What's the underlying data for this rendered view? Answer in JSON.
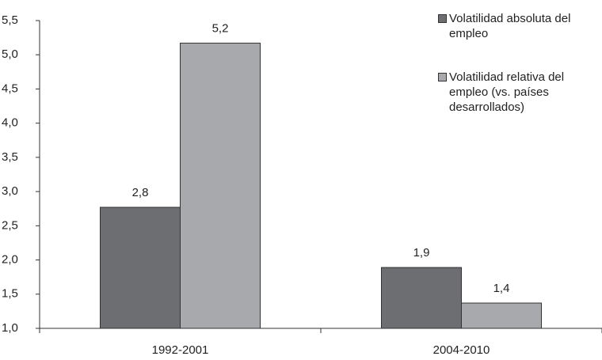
{
  "chart_data": {
    "type": "bar",
    "categories": [
      "1992-2001",
      "2004-2010"
    ],
    "series": [
      {
        "name": "Volatilidad absoluta del empleo",
        "color": "#6d6e71",
        "values": [
          2.77,
          1.89
        ],
        "value_labels": [
          "2,8",
          "1,9"
        ]
      },
      {
        "name": "Volatilidad relativa del empleo (vs. países desarrollados)",
        "color": "#a7a9ac",
        "values": [
          5.17,
          1.37
        ],
        "value_labels": [
          "5,2",
          "1,4"
        ]
      }
    ],
    "ylim": [
      1.0,
      5.5
    ],
    "yticks": [
      {
        "value": 1.0,
        "label": "1,0"
      },
      {
        "value": 1.5,
        "label": "1,5"
      },
      {
        "value": 2.0,
        "label": "2,0"
      },
      {
        "value": 2.5,
        "label": "2,5"
      },
      {
        "value": 3.0,
        "label": "3,0"
      },
      {
        "value": 3.5,
        "label": "3,5"
      },
      {
        "value": 4.0,
        "label": "4,0"
      },
      {
        "value": 4.5,
        "label": "4,5"
      },
      {
        "value": 5.0,
        "label": "5,0"
      },
      {
        "value": 5.5,
        "label": "5,5"
      }
    ],
    "legend": "top-right"
  }
}
